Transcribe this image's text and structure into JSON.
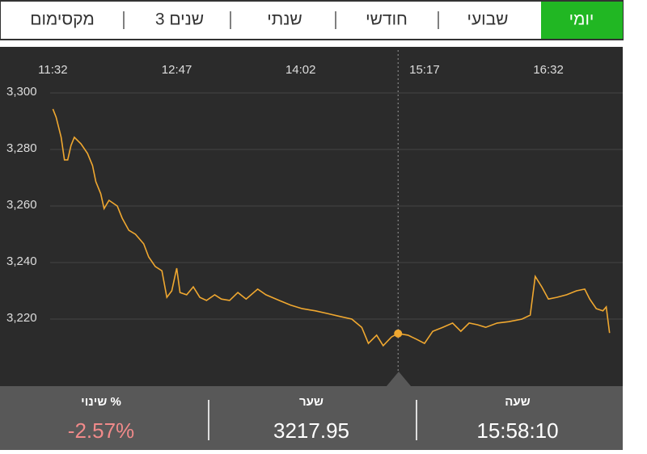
{
  "tabs": [
    "מקסימום",
    "3 שנים",
    "שנתי",
    "חודשי",
    "שבועי",
    "יומי"
  ],
  "active_tab": 5,
  "chart_data": {
    "type": "line",
    "color": "#f0a830",
    "xlim": [
      "11:00",
      "17:17"
    ],
    "xticks": [
      "11:32",
      "12:47",
      "14:02",
      "15:17",
      "16:32"
    ],
    "ylim": [
      3196,
      3304
    ],
    "yticks": [
      {
        "value": 3300,
        "label": "3,300"
      },
      {
        "value": 3280,
        "label": "3,280"
      },
      {
        "value": 3260,
        "label": "3,260"
      },
      {
        "value": 3240,
        "label": "3,240"
      },
      {
        "value": 3220,
        "label": "3,220"
      }
    ],
    "grid": true,
    "x": [
      "11:32",
      "11:34",
      "11:37",
      "11:39",
      "11:41",
      "11:43",
      "11:45",
      "11:49",
      "11:53",
      "11:56",
      "11:58",
      "12:01",
      "12:03",
      "12:06",
      "12:11",
      "12:14",
      "12:18",
      "12:22",
      "12:27",
      "12:30",
      "12:34",
      "12:38",
      "12:41",
      "12:44",
      "12:47",
      "12:49",
      "12:53",
      "12:57",
      "13:01",
      "13:05",
      "13:10",
      "13:14",
      "13:19",
      "13:24",
      "13:29",
      "13:36",
      "13:41",
      "13:49",
      "13:56",
      "14:03",
      "14:11",
      "14:18",
      "14:26",
      "14:33",
      "14:39",
      "14:43",
      "14:48",
      "14:52",
      "14:57",
      "15:01",
      "15:07",
      "15:12",
      "15:17",
      "15:22",
      "15:28",
      "15:34",
      "15:39",
      "15:44",
      "15:49",
      "15:54",
      "16:01",
      "16:08",
      "16:16",
      "16:21",
      "16:24",
      "16:28",
      "16:32",
      "16:37",
      "16:43",
      "16:49",
      "16:54",
      "16:57",
      "17:01",
      "17:05",
      "17:07",
      "17:09"
    ],
    "values": [
      3294.3,
      3291.4,
      3284.3,
      3276.3,
      3276.3,
      3281.4,
      3284.3,
      3282,
      3278.6,
      3274.3,
      3268.6,
      3264.3,
      3259.1,
      3262,
      3260,
      3255.7,
      3251.4,
      3250,
      3246.6,
      3242,
      3238.6,
      3237.1,
      3227.7,
      3230,
      3238,
      3229.4,
      3228.6,
      3231.4,
      3227.7,
      3226.6,
      3228.6,
      3227.1,
      3226.6,
      3229.4,
      3227.1,
      3230.6,
      3228.6,
      3226.6,
      3224.9,
      3223.7,
      3222.9,
      3222,
      3220.9,
      3220,
      3217.1,
      3211.4,
      3214.3,
      3210.6,
      3213.7,
      3214.9,
      3214.3,
      3212.9,
      3211.4,
      3215.7,
      3217.1,
      3218.6,
      3215.7,
      3218.6,
      3218,
      3217.1,
      3218.6,
      3219.1,
      3220,
      3221.4,
      3235.1,
      3231.4,
      3227.1,
      3227.7,
      3228.6,
      3230,
      3230.6,
      3227.1,
      3223.7,
      3222.9,
      3224.3,
      3215.1
    ],
    "crosshair": {
      "x": "15:01",
      "y": 3214.9
    }
  },
  "info": [
    {
      "label": "% שינוי",
      "value": "-2.57%"
    },
    {
      "label": "שער",
      "value": "3217.95"
    },
    {
      "label": "שעה",
      "value": "15:58:10"
    }
  ]
}
